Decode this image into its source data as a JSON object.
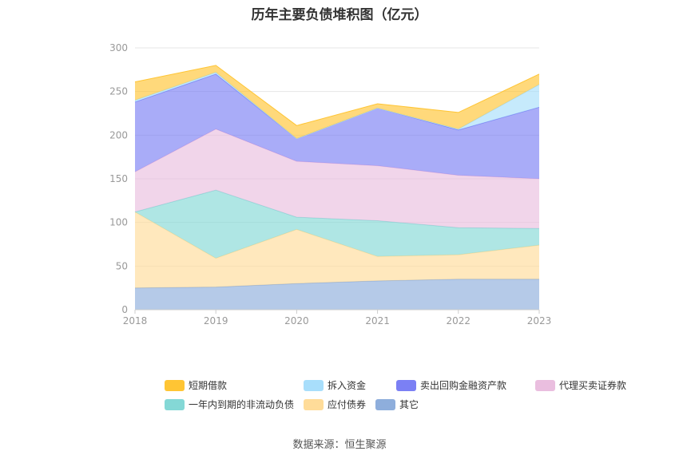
{
  "title": "历年主要负债堆积图（亿元）",
  "source": "数据来源：恒生聚源",
  "chart_data": {
    "type": "area",
    "stacked": true,
    "categories": [
      "2018",
      "2019",
      "2020",
      "2021",
      "2022",
      "2023"
    ],
    "ylim": [
      0,
      300
    ],
    "yticks": [
      0,
      50,
      100,
      150,
      200,
      250,
      300
    ],
    "grid": true,
    "legend_position": "bottom",
    "series": [
      {
        "name": "其它",
        "color": "#8eaedc",
        "values": [
          25,
          26,
          30,
          33,
          35,
          35
        ]
      },
      {
        "name": "应付债券",
        "color": "#ffdc99",
        "values": [
          87,
          33,
          62,
          28,
          28,
          39
        ]
      },
      {
        "name": "一年内到期的非流动负债",
        "color": "#84d8d6",
        "values": [
          0,
          78,
          14,
          41,
          31,
          19
        ]
      },
      {
        "name": "代理买卖证券款",
        "color": "#eabedf",
        "values": [
          46,
          70,
          64,
          63,
          60,
          57
        ]
      },
      {
        "name": "卖出回购金融资产款",
        "color": "#7b80f4",
        "values": [
          80,
          63,
          26,
          66,
          52,
          82
        ]
      },
      {
        "name": "拆入资金",
        "color": "#a8defb",
        "values": [
          2,
          2,
          0,
          0,
          1,
          26
        ]
      },
      {
        "name": "短期借款",
        "color": "#ffc534",
        "values": [
          21,
          8,
          15,
          5,
          19,
          12
        ]
      }
    ]
  },
  "legend": {
    "row1": [
      "短期借款",
      "拆入资金",
      "卖出回购金融资产款",
      "代理买卖证券款"
    ],
    "row2": [
      "一年内到期的非流动负债",
      "应付债券",
      "其它"
    ]
  }
}
